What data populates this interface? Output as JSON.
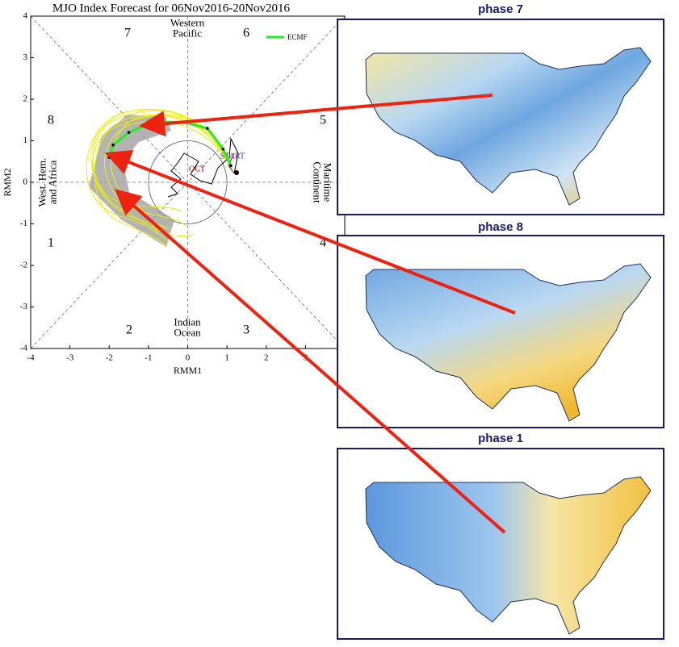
{
  "chart_data": {
    "type": "line",
    "title": "MJO Index Forecast for 06Nov2016-20Nov2016",
    "x_label": "RMM1",
    "y_label": "RMM2",
    "xlim": [
      -4,
      4
    ],
    "ylim": [
      -4,
      4
    ],
    "xticks": [
      -4,
      -3,
      -2,
      -1,
      0,
      1,
      2,
      3
    ],
    "yticks": [
      -4,
      -3,
      -2,
      -1,
      0,
      1,
      2,
      3,
      4
    ],
    "x": [
      1.1,
      0.9,
      0.5,
      -0.1,
      -0.9,
      -1.5,
      -1.9,
      -2.0
    ],
    "series": [
      {
        "name": "ECMF",
        "color": "#22ee22",
        "values": [
          0.4,
          0.8,
          1.3,
          1.45,
          1.45,
          1.2,
          0.9,
          0.6
        ]
      }
    ],
    "phase_numbers": [
      "7",
      "6",
      "8",
      "5",
      "1",
      "4",
      "2",
      "3"
    ],
    "regions": [
      [
        "Western",
        "Pacific"
      ],
      [
        "Indian",
        "Ocean"
      ],
      [
        "West. Hem.",
        "and Africa"
      ],
      [
        "Maritime",
        "Continent"
      ]
    ],
    "annotations": [
      "START",
      "OCT"
    ]
  },
  "panels": [
    {
      "title": "phase 7"
    },
    {
      "title": "phase 8"
    },
    {
      "title": "phase 1"
    }
  ]
}
